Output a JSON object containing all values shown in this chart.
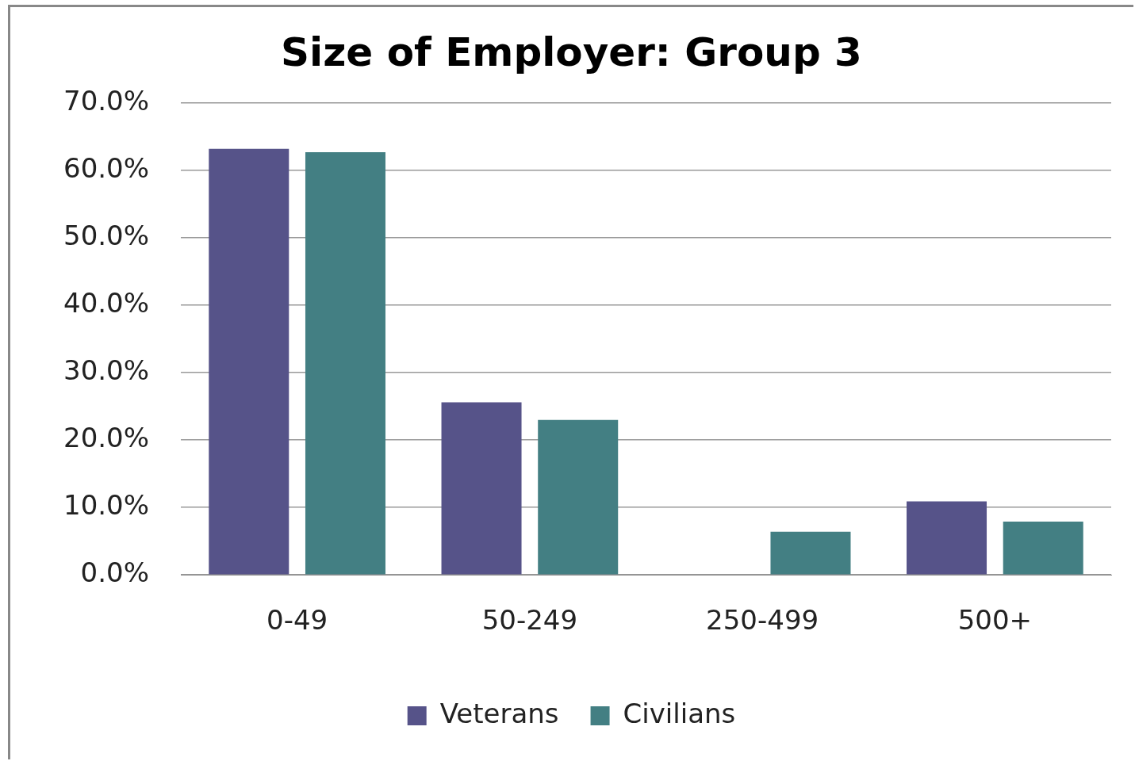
{
  "chart_data": {
    "type": "bar",
    "title": "Size of Employer: Group 3",
    "categories": [
      "0-49",
      "50-249",
      "250-499",
      "500+"
    ],
    "series": [
      {
        "name": "Veterans",
        "color": "#565389",
        "values": [
          63.2,
          25.6,
          0,
          10.9
        ]
      },
      {
        "name": "Civilians",
        "color": "#437f83",
        "values": [
          62.7,
          23.0,
          6.4,
          7.9
        ]
      }
    ],
    "ylim": [
      0,
      70
    ],
    "yticks": [
      {
        "value": 0,
        "label": "0.0%"
      },
      {
        "value": 10,
        "label": "10.0%"
      },
      {
        "value": 20,
        "label": "20.0%"
      },
      {
        "value": 30,
        "label": "30.0%"
      },
      {
        "value": 40,
        "label": "40.0%"
      },
      {
        "value": 50,
        "label": "50.0%"
      },
      {
        "value": 60,
        "label": "60.0%"
      },
      {
        "value": 70,
        "label": "70.0%"
      }
    ],
    "grid": "y",
    "legend": "bottom"
  }
}
